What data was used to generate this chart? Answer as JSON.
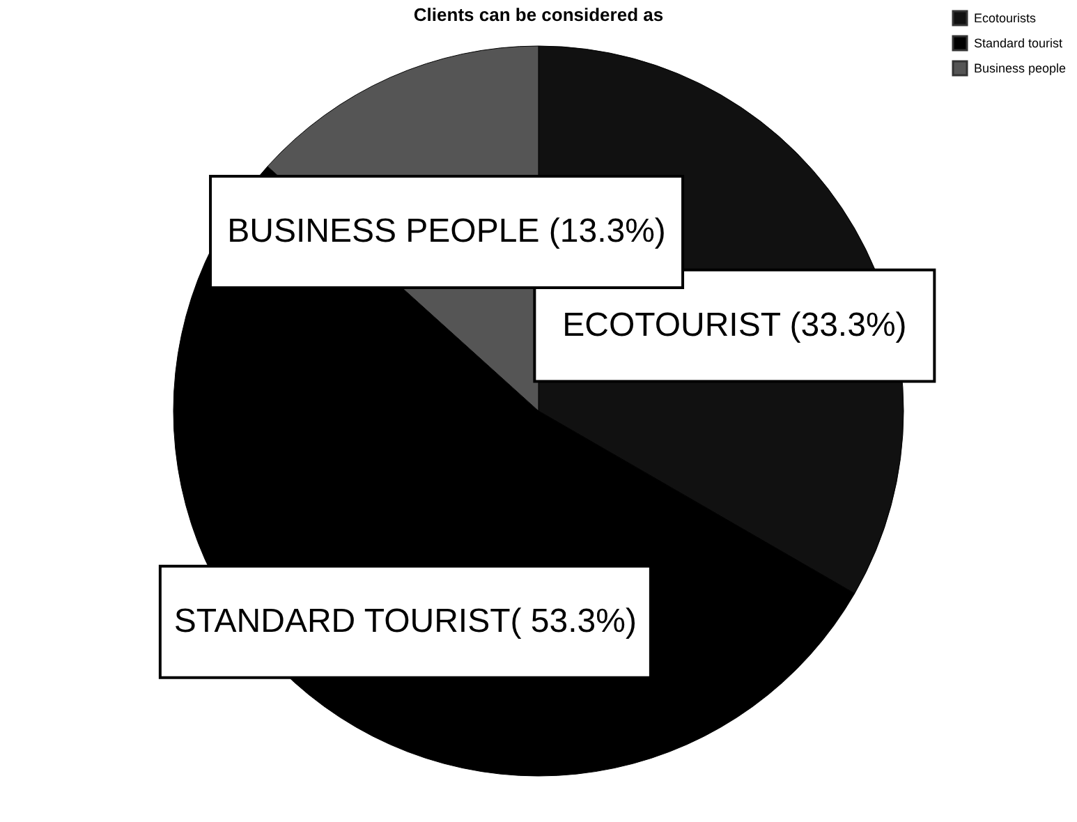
{
  "chart_data": {
    "type": "pie",
    "title": "Clients can be considered as",
    "categories": [
      "Ecotourists",
      "Standard tourist",
      "Business people"
    ],
    "values": [
      33.3,
      53.3,
      13.3
    ],
    "colors": [
      "#111111",
      "#000000",
      "#555555"
    ],
    "value_labels": [
      "ECOTOURIST  (33.3%)",
      "STANDARD TOURIST( 53.3%)",
      "BUSINESS PEOPLE (13.3%)"
    ],
    "legend": "top right"
  }
}
